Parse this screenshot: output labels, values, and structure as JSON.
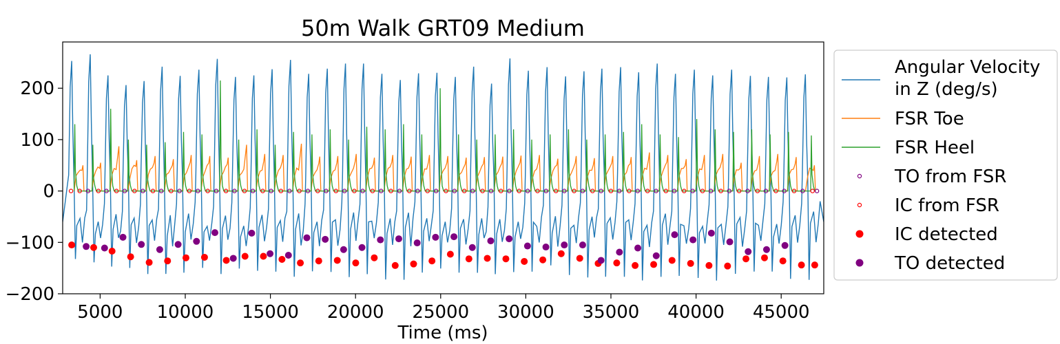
{
  "chart_data": {
    "type": "line",
    "title": "50m Walk GRT09 Medium",
    "xlabel": "Time (ms)",
    "ylabel": "",
    "xlim": [
      2800,
      47500
    ],
    "ylim": [
      -200,
      290
    ],
    "xticks": [
      5000,
      10000,
      15000,
      20000,
      25000,
      30000,
      35000,
      40000,
      45000
    ],
    "yticks": [
      -200,
      -100,
      0,
      100,
      200
    ],
    "grid": false,
    "legend_position": "outside-right",
    "colors": {
      "angular_velocity": "#1f77b4",
      "fsr_toe": "#ff7f0e",
      "fsr_heel": "#2ca02c",
      "to_from_fsr": "#800080",
      "ic_from_fsr": "#ff0000",
      "ic_detected": "#ff0000",
      "to_detected": "#800080"
    },
    "series": [
      {
        "name": "Angular Velocity\n in Z (deg/s)",
        "kind": "line",
        "color": "#1f77b4"
      },
      {
        "name": "FSR Toe",
        "kind": "line",
        "color": "#ff7f0e"
      },
      {
        "name": "FSR Heel",
        "kind": "line",
        "color": "#2ca02c"
      },
      {
        "name": "TO from FSR",
        "kind": "scatter-open",
        "color": "#800080"
      },
      {
        "name": "IC from FSR",
        "kind": "scatter-open",
        "color": "#ff0000"
      },
      {
        "name": "IC detected",
        "kind": "scatter",
        "color": "#ff0000"
      },
      {
        "name": "TO detected",
        "kind": "scatter",
        "color": "#800080"
      }
    ],
    "angular_velocity_peaks": [
      {
        "x": 3330,
        "y": 253
      },
      {
        "x": 4420,
        "y": 266
      },
      {
        "x": 5460,
        "y": 225
      },
      {
        "x": 6520,
        "y": 206
      },
      {
        "x": 7580,
        "y": 214
      },
      {
        "x": 8640,
        "y": 242
      },
      {
        "x": 9700,
        "y": 224
      },
      {
        "x": 10800,
        "y": 236
      },
      {
        "x": 11880,
        "y": 257
      },
      {
        "x": 12950,
        "y": 222
      },
      {
        "x": 14030,
        "y": 225
      },
      {
        "x": 15100,
        "y": 237
      },
      {
        "x": 16180,
        "y": 255
      },
      {
        "x": 17250,
        "y": 228
      },
      {
        "x": 18340,
        "y": 238
      },
      {
        "x": 19410,
        "y": 248
      },
      {
        "x": 20470,
        "y": 248
      },
      {
        "x": 21550,
        "y": 228
      },
      {
        "x": 22630,
        "y": 216
      },
      {
        "x": 23700,
        "y": 229
      },
      {
        "x": 24780,
        "y": 230
      },
      {
        "x": 25860,
        "y": 222
      },
      {
        "x": 26940,
        "y": 242
      },
      {
        "x": 27990,
        "y": 209
      },
      {
        "x": 29070,
        "y": 258
      },
      {
        "x": 30150,
        "y": 234
      },
      {
        "x": 31250,
        "y": 241
      },
      {
        "x": 32340,
        "y": 223
      },
      {
        "x": 33420,
        "y": 233
      },
      {
        "x": 34470,
        "y": 238
      },
      {
        "x": 35570,
        "y": 241
      },
      {
        "x": 36630,
        "y": 231
      },
      {
        "x": 37720,
        "y": 248
      },
      {
        "x": 38790,
        "y": 228
      },
      {
        "x": 39900,
        "y": 236
      },
      {
        "x": 40980,
        "y": 225
      },
      {
        "x": 42090,
        "y": 236
      },
      {
        "x": 43190,
        "y": 224
      },
      {
        "x": 44250,
        "y": 222
      },
      {
        "x": 45330,
        "y": 221
      },
      {
        "x": 46420,
        "y": 227
      }
    ],
    "toe_peaks": [
      {
        "x": 3990,
        "y": 50
      },
      {
        "x": 5030,
        "y": 55
      },
      {
        "x": 6100,
        "y": 87
      },
      {
        "x": 7150,
        "y": 60
      },
      {
        "x": 8230,
        "y": 68
      },
      {
        "x": 9300,
        "y": 62
      },
      {
        "x": 10350,
        "y": 70
      },
      {
        "x": 11440,
        "y": 68
      },
      {
        "x": 12520,
        "y": 65
      },
      {
        "x": 13600,
        "y": 90
      },
      {
        "x": 14670,
        "y": 72
      },
      {
        "x": 15750,
        "y": 70
      },
      {
        "x": 16820,
        "y": 92
      },
      {
        "x": 17900,
        "y": 67
      },
      {
        "x": 18960,
        "y": 68
      },
      {
        "x": 20040,
        "y": 72
      },
      {
        "x": 21110,
        "y": 65
      },
      {
        "x": 22190,
        "y": 70
      },
      {
        "x": 23270,
        "y": 67
      },
      {
        "x": 24340,
        "y": 70
      },
      {
        "x": 25420,
        "y": 68
      },
      {
        "x": 26500,
        "y": 65
      },
      {
        "x": 27570,
        "y": 66
      },
      {
        "x": 28650,
        "y": 67
      },
      {
        "x": 29720,
        "y": 69
      },
      {
        "x": 30800,
        "y": 70
      },
      {
        "x": 31880,
        "y": 63
      },
      {
        "x": 32960,
        "y": 68
      },
      {
        "x": 34030,
        "y": 64
      },
      {
        "x": 35110,
        "y": 68
      },
      {
        "x": 36190,
        "y": 66
      },
      {
        "x": 37260,
        "y": 75
      },
      {
        "x": 38340,
        "y": 70
      },
      {
        "x": 39420,
        "y": 62
      },
      {
        "x": 40490,
        "y": 70
      },
      {
        "x": 41570,
        "y": 72
      },
      {
        "x": 42650,
        "y": 55
      },
      {
        "x": 43720,
        "y": 68
      },
      {
        "x": 44800,
        "y": 72
      },
      {
        "x": 45880,
        "y": 66
      },
      {
        "x": 46950,
        "y": 50
      }
    ],
    "heel_peaks": [
      {
        "x": 3510,
        "y": 130
      },
      {
        "x": 4570,
        "y": 90
      },
      {
        "x": 5620,
        "y": 160
      },
      {
        "x": 6660,
        "y": 100
      },
      {
        "x": 7730,
        "y": 90
      },
      {
        "x": 8820,
        "y": 95
      },
      {
        "x": 9900,
        "y": 115
      },
      {
        "x": 10980,
        "y": 110
      },
      {
        "x": 12060,
        "y": 215
      },
      {
        "x": 13140,
        "y": 100
      },
      {
        "x": 14210,
        "y": 120
      },
      {
        "x": 15280,
        "y": 90
      },
      {
        "x": 16360,
        "y": 115
      },
      {
        "x": 17440,
        "y": 110
      },
      {
        "x": 18510,
        "y": 120
      },
      {
        "x": 19590,
        "y": 100
      },
      {
        "x": 20660,
        "y": 125
      },
      {
        "x": 21740,
        "y": 120
      },
      {
        "x": 22820,
        "y": 130
      },
      {
        "x": 23890,
        "y": 110
      },
      {
        "x": 24970,
        "y": 200
      },
      {
        "x": 26050,
        "y": 110
      },
      {
        "x": 27120,
        "y": 100
      },
      {
        "x": 28200,
        "y": 110
      },
      {
        "x": 29280,
        "y": 120
      },
      {
        "x": 30350,
        "y": 100
      },
      {
        "x": 31430,
        "y": 110
      },
      {
        "x": 32510,
        "y": 120
      },
      {
        "x": 33580,
        "y": 100
      },
      {
        "x": 34660,
        "y": 110
      },
      {
        "x": 35740,
        "y": 115
      },
      {
        "x": 36810,
        "y": 130
      },
      {
        "x": 37890,
        "y": 110
      },
      {
        "x": 38970,
        "y": 105
      },
      {
        "x": 40040,
        "y": 140
      },
      {
        "x": 41120,
        "y": 120
      },
      {
        "x": 42200,
        "y": 115
      },
      {
        "x": 43270,
        "y": 120
      },
      {
        "x": 44350,
        "y": 110
      },
      {
        "x": 45430,
        "y": 115
      },
      {
        "x": 46770,
        "y": 108
      }
    ],
    "to_from_fsr_x": [
      4290,
      5370,
      6440,
      7510,
      8590,
      9660,
      10740,
      11820,
      12890,
      13970,
      15040,
      16120,
      17200,
      18270,
      19350,
      20420,
      21500,
      22580,
      23650,
      24730,
      25810,
      26880,
      27960,
      29030,
      30110,
      31190,
      32260,
      33340,
      34420,
      35490,
      36570,
      37650,
      38720,
      39800,
      40870,
      41950,
      43030,
      44100,
      45180,
      46260,
      47100
    ],
    "ic_from_fsr_x": [
      3290,
      3800,
      4900,
      5960,
      7020,
      8100,
      9170,
      10240,
      11320,
      12390,
      13480,
      14550,
      15620,
      16700,
      17780,
      18850,
      19930,
      21000,
      22080,
      23160,
      24230,
      25310,
      26390,
      27460,
      28540,
      29610,
      30690,
      31770,
      32840,
      33920,
      35000,
      36070,
      37150,
      38230,
      39300,
      40380,
      41460,
      42530,
      43610,
      44690,
      45760,
      46840
    ],
    "ic_detected": [
      {
        "x": 3330,
        "y": -105
      },
      {
        "x": 4620,
        "y": -110
      },
      {
        "x": 5700,
        "y": -117
      },
      {
        "x": 6790,
        "y": -128
      },
      {
        "x": 7880,
        "y": -139
      },
      {
        "x": 8960,
        "y": -136
      },
      {
        "x": 10040,
        "y": -130
      },
      {
        "x": 11130,
        "y": -129
      },
      {
        "x": 12410,
        "y": -135
      },
      {
        "x": 13510,
        "y": -127
      },
      {
        "x": 14590,
        "y": -127
      },
      {
        "x": 15680,
        "y": -133
      },
      {
        "x": 16760,
        "y": -140
      },
      {
        "x": 17840,
        "y": -136
      },
      {
        "x": 18930,
        "y": -135
      },
      {
        "x": 20010,
        "y": -140
      },
      {
        "x": 21100,
        "y": -130
      },
      {
        "x": 22330,
        "y": -145
      },
      {
        "x": 23410,
        "y": -142
      },
      {
        "x": 24490,
        "y": -136
      },
      {
        "x": 25570,
        "y": -123
      },
      {
        "x": 26660,
        "y": -132
      },
      {
        "x": 27740,
        "y": -131
      },
      {
        "x": 28830,
        "y": -132
      },
      {
        "x": 29910,
        "y": -137
      },
      {
        "x": 31000,
        "y": -134
      },
      {
        "x": 32080,
        "y": -122
      },
      {
        "x": 33170,
        "y": -131
      },
      {
        "x": 34250,
        "y": -141
      },
      {
        "x": 35340,
        "y": -140
      },
      {
        "x": 36420,
        "y": -145
      },
      {
        "x": 37510,
        "y": -143
      },
      {
        "x": 38590,
        "y": -135
      },
      {
        "x": 39680,
        "y": -141
      },
      {
        "x": 40760,
        "y": -145
      },
      {
        "x": 41850,
        "y": -146
      },
      {
        "x": 42930,
        "y": -132
      },
      {
        "x": 44020,
        "y": -130
      },
      {
        "x": 45100,
        "y": -136
      },
      {
        "x": 46190,
        "y": -144
      },
      {
        "x": 46970,
        "y": -144
      }
    ],
    "to_detected": [
      {
        "x": 4180,
        "y": -108
      },
      {
        "x": 5260,
        "y": -111
      },
      {
        "x": 6340,
        "y": -90
      },
      {
        "x": 7420,
        "y": -104
      },
      {
        "x": 8500,
        "y": -114
      },
      {
        "x": 9580,
        "y": -104
      },
      {
        "x": 10660,
        "y": -98
      },
      {
        "x": 11740,
        "y": -81
      },
      {
        "x": 12820,
        "y": -131
      },
      {
        "x": 13900,
        "y": -82
      },
      {
        "x": 14980,
        "y": -122
      },
      {
        "x": 16060,
        "y": -125
      },
      {
        "x": 17140,
        "y": -91
      },
      {
        "x": 18220,
        "y": -94
      },
      {
        "x": 19300,
        "y": -114
      },
      {
        "x": 20380,
        "y": -110
      },
      {
        "x": 21460,
        "y": -95
      },
      {
        "x": 22540,
        "y": -93
      },
      {
        "x": 23620,
        "y": -101
      },
      {
        "x": 24700,
        "y": -90
      },
      {
        "x": 25780,
        "y": -89
      },
      {
        "x": 26860,
        "y": -110
      },
      {
        "x": 27940,
        "y": -97
      },
      {
        "x": 29020,
        "y": -93
      },
      {
        "x": 30100,
        "y": -107
      },
      {
        "x": 31180,
        "y": -109
      },
      {
        "x": 32260,
        "y": -105
      },
      {
        "x": 33340,
        "y": -105
      },
      {
        "x": 34420,
        "y": -135
      },
      {
        "x": 35500,
        "y": -119
      },
      {
        "x": 36580,
        "y": -111
      },
      {
        "x": 37660,
        "y": -126
      },
      {
        "x": 38740,
        "y": -85
      },
      {
        "x": 39820,
        "y": -95
      },
      {
        "x": 40900,
        "y": -82
      },
      {
        "x": 41980,
        "y": -99
      },
      {
        "x": 43060,
        "y": -118
      },
      {
        "x": 44140,
        "y": -114
      },
      {
        "x": 45220,
        "y": -106
      }
    ]
  }
}
